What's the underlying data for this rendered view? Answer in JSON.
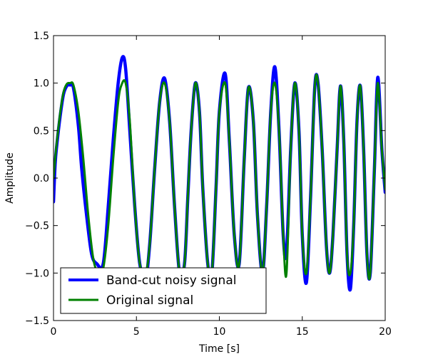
{
  "chart_data": {
    "type": "line",
    "xlabel": "Time [s]",
    "ylabel": "Amplitude",
    "xlim": [
      0,
      20
    ],
    "ylim": [
      -1.5,
      1.5
    ],
    "xticks": [
      0,
      5,
      10,
      15,
      20
    ],
    "xtick_labels": [
      "0",
      "5",
      "10",
      "15",
      "20"
    ],
    "yticks": [
      1.5,
      1.0,
      0.5,
      0.0,
      -0.5,
      -1.0,
      -1.5
    ],
    "ytick_labels": [
      "1.5",
      "1.0",
      "0.5",
      "0.0",
      "−0.5",
      "−1.0",
      "−1.5"
    ],
    "grid": false,
    "legend_position": "lower-left",
    "series": [
      {
        "name": "Band-cut noisy signal",
        "color": "#0000ff",
        "x": [
          0.0,
          0.1,
          0.2,
          0.4,
          0.6,
          0.8,
          1.0,
          1.2,
          1.5,
          1.7,
          2.0,
          2.3,
          2.6,
          3.0,
          3.3,
          3.6,
          3.9,
          4.15,
          4.35,
          4.6,
          4.9,
          5.2,
          5.55,
          5.8,
          6.1,
          6.4,
          6.7,
          7.0,
          7.3,
          7.6,
          7.9,
          8.1,
          8.3,
          8.55,
          8.8,
          9.0,
          9.3,
          9.55,
          9.8,
          10.0,
          10.35,
          10.6,
          10.9,
          11.2,
          11.5,
          11.75,
          12.05,
          12.3,
          12.6,
          12.85,
          13.1,
          13.35,
          13.6,
          13.85,
          14.05,
          14.3,
          14.55,
          14.8,
          15.0,
          15.25,
          15.5,
          15.75,
          15.95,
          16.2,
          16.45,
          16.65,
          16.85,
          17.1,
          17.3,
          17.5,
          17.7,
          17.9,
          18.1,
          18.3,
          18.5,
          18.7,
          18.9,
          19.1,
          19.35,
          19.55,
          19.8,
          20.0
        ],
        "y": [
          -0.25,
          0.15,
          0.35,
          0.65,
          0.88,
          0.97,
          0.98,
          0.95,
          0.55,
          0.1,
          -0.4,
          -0.8,
          -0.9,
          -0.9,
          -0.3,
          0.4,
          1.0,
          1.27,
          1.15,
          0.5,
          -0.3,
          -0.9,
          -1.05,
          -0.7,
          0.1,
          0.8,
          1.05,
          0.6,
          -0.3,
          -1.0,
          -0.9,
          -0.2,
          0.5,
          1.0,
          0.7,
          -0.1,
          -0.9,
          -1.0,
          -0.1,
          0.7,
          1.1,
          0.4,
          -0.6,
          -0.9,
          0.2,
          0.95,
          0.6,
          -0.4,
          -1.0,
          -0.3,
          0.7,
          1.17,
          0.5,
          -0.6,
          -0.78,
          0.3,
          1.0,
          0.5,
          -0.6,
          -1.1,
          -0.2,
          0.95,
          1.0,
          0.3,
          -0.7,
          -1.0,
          -0.6,
          0.3,
          0.97,
          0.4,
          -0.8,
          -1.17,
          -0.5,
          0.6,
          0.97,
          0.3,
          -0.8,
          -1.0,
          0.1,
          1.06,
          0.3,
          -0.15
        ]
      },
      {
        "name": "Original signal",
        "color": "#008000",
        "x": [
          0.0,
          0.1,
          0.2,
          0.4,
          0.6,
          0.8,
          1.0,
          1.2,
          1.5,
          1.8,
          2.1,
          2.4,
          2.7,
          3.0,
          3.3,
          3.6,
          3.9,
          4.1,
          4.35,
          4.6,
          4.9,
          5.2,
          5.55,
          5.8,
          6.1,
          6.4,
          6.7,
          7.0,
          7.3,
          7.6,
          7.9,
          8.1,
          8.3,
          8.55,
          8.8,
          9.0,
          9.3,
          9.55,
          9.8,
          10.0,
          10.35,
          10.6,
          10.9,
          11.2,
          11.5,
          11.75,
          12.05,
          12.3,
          12.6,
          12.85,
          13.1,
          13.35,
          13.6,
          13.85,
          14.05,
          14.3,
          14.55,
          14.8,
          15.0,
          15.25,
          15.5,
          15.75,
          15.95,
          16.2,
          16.45,
          16.65,
          16.85,
          17.1,
          17.3,
          17.5,
          17.7,
          17.9,
          18.1,
          18.3,
          18.5,
          18.7,
          18.9,
          19.1,
          19.35,
          19.55,
          19.8,
          20.0
        ],
        "y": [
          0.0,
          0.2,
          0.38,
          0.68,
          0.9,
          0.99,
          1.0,
          0.98,
          0.7,
          0.2,
          -0.4,
          -0.85,
          -1.0,
          -0.95,
          -0.5,
          0.2,
          0.8,
          0.98,
          1.0,
          0.6,
          -0.3,
          -0.9,
          -1.0,
          -0.7,
          0.1,
          0.8,
          1.0,
          0.6,
          -0.3,
          -1.0,
          -0.9,
          -0.2,
          0.5,
          1.0,
          0.7,
          -0.1,
          -0.9,
          -1.0,
          -0.1,
          0.7,
          1.0,
          0.4,
          -0.6,
          -0.9,
          0.2,
          0.95,
          0.6,
          -0.4,
          -1.0,
          -0.3,
          0.7,
          1.0,
          0.5,
          -0.6,
          -1.0,
          0.3,
          1.0,
          0.5,
          -0.6,
          -1.0,
          -0.2,
          0.95,
          1.0,
          0.3,
          -0.7,
          -1.0,
          -0.6,
          0.3,
          0.97,
          0.4,
          -0.8,
          -1.0,
          -0.5,
          0.6,
          0.97,
          0.3,
          -0.8,
          -1.0,
          0.1,
          1.0,
          0.3,
          -0.12
        ]
      }
    ]
  }
}
